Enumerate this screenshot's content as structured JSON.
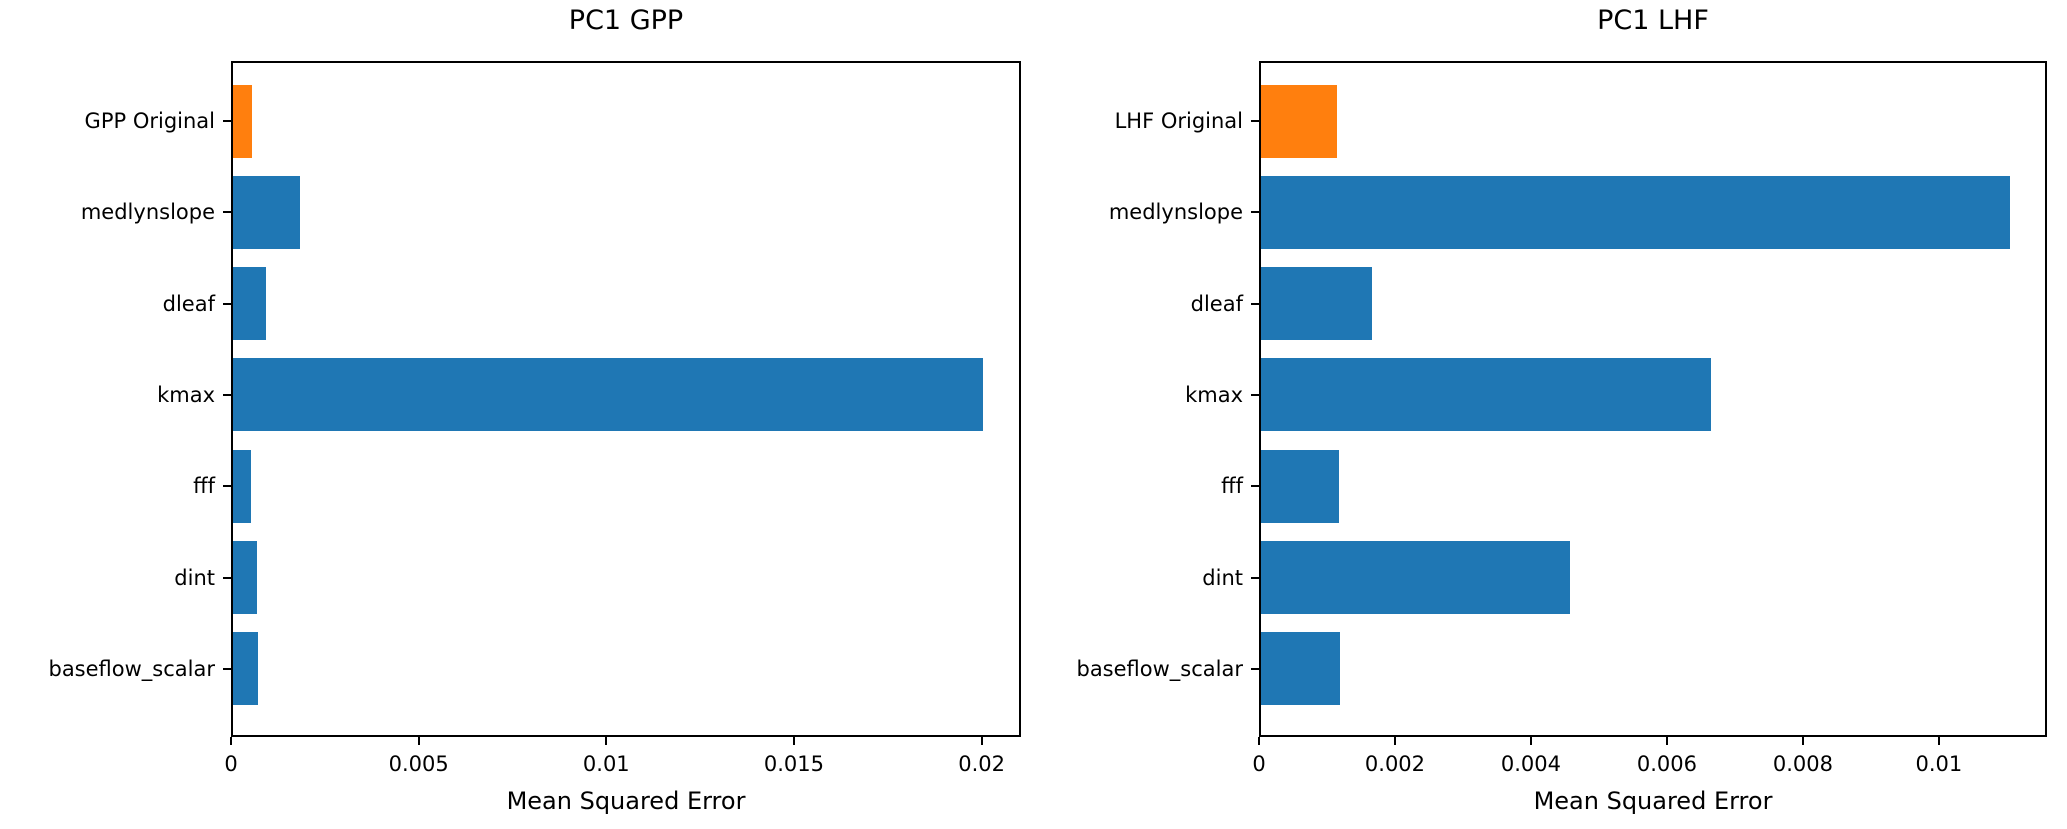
{
  "figure": {
    "background": "#ffffff"
  },
  "colors": {
    "bar_default": "#1f77b4",
    "bar_highlight": "#ff7f0e",
    "text": "#000000",
    "axis": "#000000"
  },
  "chart_data": [
    {
      "type": "bar",
      "orientation": "horizontal",
      "title": "PC1 GPP",
      "xlabel": "Mean Squared Error",
      "categories": [
        "GPP Original",
        "medlynslope",
        "dleaf",
        "kmax",
        "fff",
        "dint",
        "baseflow_scalar"
      ],
      "values": [
        0.00056,
        0.00183,
        0.00093,
        0.02005,
        0.00053,
        0.00068,
        0.00072
      ],
      "bar_colors": [
        "#ff7f0e",
        "#1f77b4",
        "#1f77b4",
        "#1f77b4",
        "#1f77b4",
        "#1f77b4",
        "#1f77b4"
      ],
      "xlim": [
        0,
        0.02105
      ],
      "xticks": [
        0,
        0.005,
        0.01,
        0.015,
        0.02
      ],
      "xtick_labels": [
        "0",
        "0.005",
        "0.01",
        "0.015",
        "0.02"
      ],
      "grid": false,
      "legend_position": "none"
    },
    {
      "type": "bar",
      "orientation": "horizontal",
      "title": "PC1 LHF",
      "xlabel": "Mean Squared Error",
      "categories": [
        "LHF Original",
        "medlynslope",
        "dleaf",
        "kmax",
        "fff",
        "dint",
        "baseflow_scalar"
      ],
      "values": [
        0.00115,
        0.01104,
        0.00166,
        0.00665,
        0.00118,
        0.00457,
        0.00119
      ],
      "bar_colors": [
        "#ff7f0e",
        "#1f77b4",
        "#1f77b4",
        "#1f77b4",
        "#1f77b4",
        "#1f77b4",
        "#1f77b4"
      ],
      "xlim": [
        0,
        0.01159
      ],
      "xticks": [
        0,
        0.002,
        0.004,
        0.006,
        0.008,
        0.01
      ],
      "xtick_labels": [
        "0",
        "0.002",
        "0.004",
        "0.006",
        "0.008",
        "0.01"
      ],
      "grid": false,
      "legend_position": "none"
    }
  ]
}
